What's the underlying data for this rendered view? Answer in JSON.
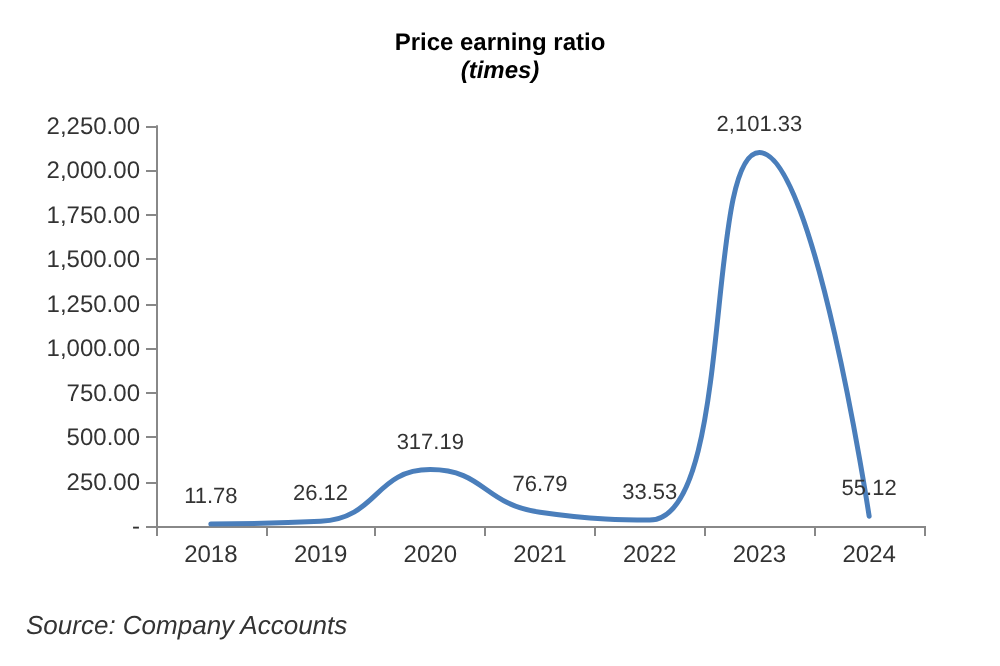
{
  "chart_data": {
    "type": "line",
    "title": "Price earning ratio",
    "subtitle": "(times)",
    "categories": [
      "2018",
      "2019",
      "2020",
      "2021",
      "2022",
      "2023",
      "2024"
    ],
    "series": [
      {
        "color": "#4a7ebb",
        "values": [
          11.78,
          26.12,
          317.19,
          76.79,
          33.53,
          2101.33,
          55.12
        ]
      }
    ],
    "ylim": [
      0,
      2250
    ],
    "yticks": [
      {
        "value": 0,
        "label": "-"
      },
      {
        "value": 250,
        "label": "250.00"
      },
      {
        "value": 500,
        "label": "500.00"
      },
      {
        "value": 750,
        "label": "750.00"
      },
      {
        "value": 1000,
        "label": "1,000.00"
      },
      {
        "value": 1250,
        "label": "1,250.00"
      },
      {
        "value": 1500,
        "label": "1,500.00"
      },
      {
        "value": 1750,
        "label": "1,750.00"
      },
      {
        "value": 2000,
        "label": "2,000.00"
      },
      {
        "value": 2250,
        "label": "2,250.00"
      }
    ],
    "value_labels": [
      "11.78",
      "26.12",
      "317.19",
      "76.79",
      "33.53",
      "2,101.33",
      "55.12"
    ],
    "grid": false,
    "marker": "none",
    "line_style": "solid",
    "annotations": [
      "Source: Company Accounts"
    ]
  }
}
